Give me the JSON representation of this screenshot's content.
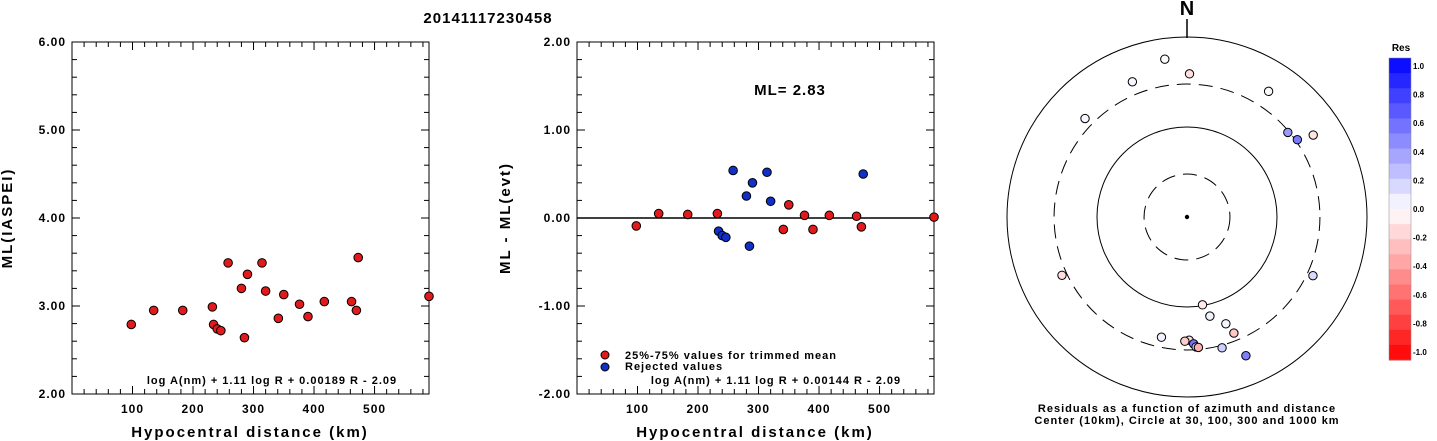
{
  "page_title": "20141117230458",
  "chart_data": [
    {
      "type": "scatter",
      "title": "",
      "xlabel": "Hypocentral distance (km)",
      "ylabel": "ML(IASPEI)",
      "xlim": [
        0,
        590
      ],
      "ylim": [
        2.0,
        6.0
      ],
      "x_ticks": [
        "100",
        "200",
        "300",
        "400",
        "500"
      ],
      "y_ticks": [
        "2.00",
        "3.00",
        "4.00",
        "5.00",
        "6.00"
      ],
      "annotation": "log A(nm) + 1.11 log R + 0.00189 R - 2.09",
      "color": "#e31a1c",
      "points": [
        {
          "x": 98,
          "y": 2.79
        },
        {
          "x": 135,
          "y": 2.95
        },
        {
          "x": 183,
          "y": 2.95
        },
        {
          "x": 232,
          "y": 2.99
        },
        {
          "x": 234,
          "y": 2.79
        },
        {
          "x": 240,
          "y": 2.74
        },
        {
          "x": 246,
          "y": 2.72
        },
        {
          "x": 258,
          "y": 3.49
        },
        {
          "x": 280,
          "y": 3.2
        },
        {
          "x": 285,
          "y": 2.64
        },
        {
          "x": 290,
          "y": 3.36
        },
        {
          "x": 314,
          "y": 3.49
        },
        {
          "x": 320,
          "y": 3.17
        },
        {
          "x": 341,
          "y": 2.86
        },
        {
          "x": 350,
          "y": 3.13
        },
        {
          "x": 376,
          "y": 3.02
        },
        {
          "x": 390,
          "y": 2.88
        },
        {
          "x": 417,
          "y": 3.05
        },
        {
          "x": 462,
          "y": 3.05
        },
        {
          "x": 470,
          "y": 2.95
        },
        {
          "x": 473,
          "y": 3.55
        },
        {
          "x": 590,
          "y": 3.11
        }
      ]
    },
    {
      "type": "scatter",
      "title": "",
      "xlabel": "Hypocentral distance (km)",
      "ylabel": "ML - ML(evt)",
      "xlim": [
        0,
        590
      ],
      "ylim": [
        -2.0,
        2.0
      ],
      "x_ticks": [
        "100",
        "200",
        "300",
        "400",
        "500"
      ],
      "y_ticks": [
        "-2.00",
        "-1.00",
        "0.00",
        "1.00",
        "2.00"
      ],
      "ml_label": "ML= 2.83",
      "annotation": "log A(nm) + 1.11 log R + 0.00144 R - 2.09",
      "reference_line": 0.0,
      "series": [
        {
          "name": "25%-75% values for trimmed mean",
          "color": "#e31a1c",
          "points": [
            {
              "x": 98,
              "y": -0.09
            },
            {
              "x": 135,
              "y": 0.05
            },
            {
              "x": 183,
              "y": 0.04
            },
            {
              "x": 232,
              "y": 0.05
            },
            {
              "x": 341,
              "y": -0.13
            },
            {
              "x": 350,
              "y": 0.15
            },
            {
              "x": 376,
              "y": 0.03
            },
            {
              "x": 390,
              "y": -0.13
            },
            {
              "x": 417,
              "y": 0.03
            },
            {
              "x": 462,
              "y": 0.02
            },
            {
              "x": 470,
              "y": -0.1
            },
            {
              "x": 590,
              "y": 0.01
            }
          ]
        },
        {
          "name": "Rejected values",
          "color": "#1030c8",
          "points": [
            {
              "x": 234,
              "y": -0.15
            },
            {
              "x": 240,
              "y": -0.2
            },
            {
              "x": 246,
              "y": -0.22
            },
            {
              "x": 258,
              "y": 0.54
            },
            {
              "x": 280,
              "y": 0.25
            },
            {
              "x": 285,
              "y": -0.32
            },
            {
              "x": 290,
              "y": 0.4
            },
            {
              "x": 314,
              "y": 0.52
            },
            {
              "x": 320,
              "y": 0.19
            },
            {
              "x": 473,
              "y": 0.5
            }
          ]
        }
      ]
    },
    {
      "type": "scatter",
      "subtype": "polar-residual-map",
      "north_label": "N",
      "caption_line1": "Residuals as a function of azimuth and distance",
      "caption_line2": "Center (10km), Circle at 30, 100, 300 and 1000 km",
      "radial_scale": "log",
      "rings_km": [
        {
          "km": 30,
          "style": "dashed"
        },
        {
          "km": 100,
          "style": "solid"
        },
        {
          "km": 300,
          "style": "dashed"
        },
        {
          "km": 1000,
          "style": "solid"
        }
      ],
      "points": [
        {
          "azimuth_deg": 352,
          "distance_km": 590,
          "residual": 0.01
        },
        {
          "azimuth_deg": 1,
          "distance_km": 390,
          "residual": -0.13
        },
        {
          "azimuth_deg": 338,
          "distance_km": 417,
          "residual": 0.03
        },
        {
          "azimuth_deg": 33,
          "distance_km": 462,
          "residual": 0.02
        },
        {
          "azimuth_deg": 55,
          "distance_km": 314,
          "residual": 0.52
        },
        {
          "azimuth_deg": 57,
          "distance_km": 470,
          "residual": -0.1
        },
        {
          "azimuth_deg": 50,
          "distance_km": 290,
          "residual": 0.4
        },
        {
          "azimuth_deg": 314,
          "distance_km": 376,
          "residual": 0.03
        },
        {
          "azimuth_deg": 115,
          "distance_km": 350,
          "residual": 0.15
        },
        {
          "azimuth_deg": 245,
          "distance_km": 341,
          "residual": -0.13
        },
        {
          "azimuth_deg": 192,
          "distance_km": 232,
          "residual": 0.05
        },
        {
          "azimuth_deg": 179,
          "distance_km": 234,
          "residual": -0.15
        },
        {
          "azimuth_deg": 181,
          "distance_km": 240,
          "residual": -0.2
        },
        {
          "azimuth_deg": 177,
          "distance_km": 258,
          "residual": 0.54
        },
        {
          "azimuth_deg": 176,
          "distance_km": 280,
          "residual": 0.25
        },
        {
          "azimuth_deg": 175,
          "distance_km": 285,
          "residual": -0.32
        },
        {
          "azimuth_deg": 170,
          "distance_km": 98,
          "residual": -0.09
        },
        {
          "azimuth_deg": 167,
          "distance_km": 135,
          "residual": 0.05
        },
        {
          "azimuth_deg": 160,
          "distance_km": 183,
          "residual": 0.04
        },
        {
          "azimuth_deg": 165,
          "distance_km": 320,
          "residual": 0.19
        },
        {
          "azimuth_deg": 158,
          "distance_km": 246,
          "residual": -0.22
        },
        {
          "azimuth_deg": 157,
          "distance_km": 473,
          "residual": 0.5
        }
      ],
      "colorbar": {
        "title": "Res",
        "tick_labels": [
          "1.0",
          "0.8",
          "0.6",
          "0.4",
          "0.2",
          "0.0",
          "-0.2",
          "-0.4",
          "-0.6",
          "-0.8",
          "-1.0"
        ],
        "positive_color": "#0000ff",
        "negative_color": "#ff0000"
      }
    }
  ]
}
